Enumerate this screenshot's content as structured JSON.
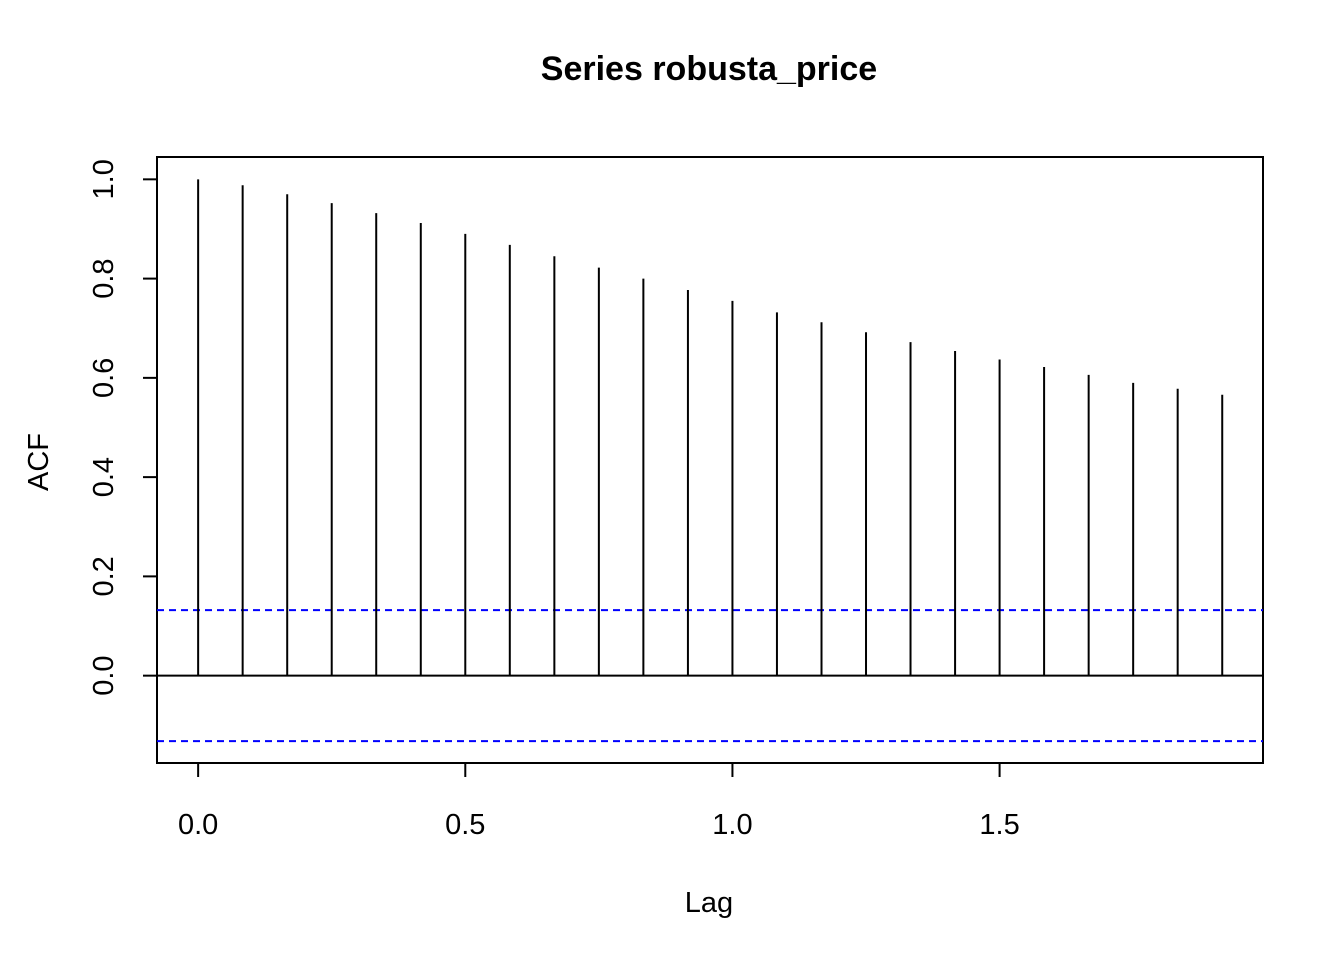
{
  "chart_data": {
    "type": "bar",
    "title": "Series  robusta_price",
    "xlabel": "Lag",
    "ylabel": "ACF",
    "xlim": [
      -0.077,
      1.993
    ],
    "ylim": [
      -0.176,
      1.045
    ],
    "x_ticks": [
      {
        "value": 0.0,
        "label": "0.0"
      },
      {
        "value": 0.5,
        "label": "0.5"
      },
      {
        "value": 1.0,
        "label": "1.0"
      },
      {
        "value": 1.5,
        "label": "1.5"
      }
    ],
    "y_ticks": [
      {
        "value": 0.0,
        "label": "0.0"
      },
      {
        "value": 0.2,
        "label": "0.2"
      },
      {
        "value": 0.4,
        "label": "0.4"
      },
      {
        "value": 0.6,
        "label": "0.6"
      },
      {
        "value": 0.8,
        "label": "0.8"
      },
      {
        "value": 1.0,
        "label": "1.0"
      }
    ],
    "lags": [
      0.0,
      0.0833,
      0.1667,
      0.25,
      0.3333,
      0.4167,
      0.5,
      0.5833,
      0.6667,
      0.75,
      0.8333,
      0.9167,
      1.0,
      1.0833,
      1.1667,
      1.25,
      1.3333,
      1.4167,
      1.5,
      1.5833,
      1.6667,
      1.75,
      1.8333,
      1.9167
    ],
    "acf": [
      1.0,
      0.988,
      0.97,
      0.952,
      0.932,
      0.912,
      0.89,
      0.868,
      0.845,
      0.822,
      0.8,
      0.777,
      0.755,
      0.732,
      0.712,
      0.692,
      0.672,
      0.654,
      0.637,
      0.622,
      0.606,
      0.59,
      0.578,
      0.566
    ],
    "confidence_limit": 0.132,
    "zero_line": 0.0,
    "colors": {
      "bars": "#000000",
      "confidence_lines": "#0000ff",
      "frame": "#000000"
    }
  }
}
